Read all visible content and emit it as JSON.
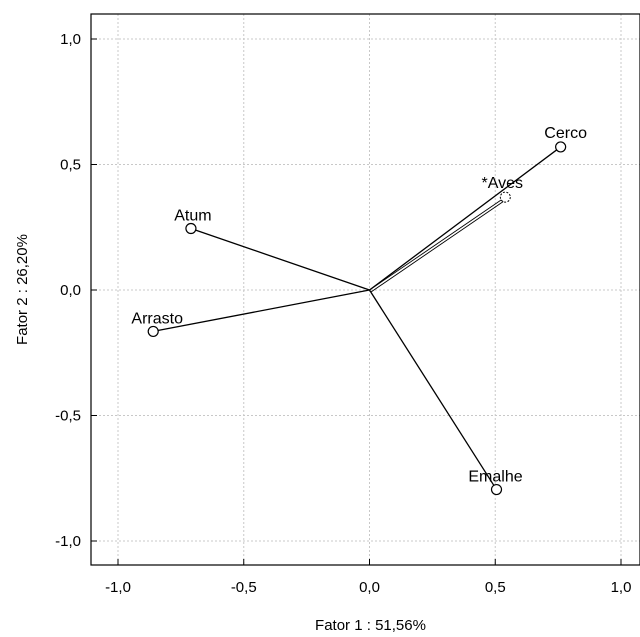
{
  "chart_data": {
    "type": "scatter",
    "title": "",
    "xlabel": "Fator 1 : 51,56%",
    "ylabel": "Fator 2 : 26,20%",
    "xlim": [
      -1.1,
      1.1
    ],
    "ylim": [
      -1.1,
      1.1
    ],
    "xticks": [
      -1.0,
      -0.5,
      0.0,
      0.5,
      1.0
    ],
    "yticks": [
      -1.0,
      -0.5,
      0.0,
      0.5,
      1.0
    ],
    "xtick_labels": [
      "-1,0",
      "-0,5",
      "0,0",
      "0,5",
      "1,0"
    ],
    "ytick_labels": [
      "-1,0",
      "-0,5",
      "0,0",
      "0,5",
      "1,0"
    ],
    "grid": true,
    "points": [
      {
        "label": "Cerco",
        "x": 0.76,
        "y": 0.57,
        "supplementary": false
      },
      {
        "label": "*Aves",
        "x": 0.54,
        "y": 0.37,
        "supplementary": true
      },
      {
        "label": "Atum",
        "x": -0.71,
        "y": 0.245,
        "supplementary": false
      },
      {
        "label": "Arrasto",
        "x": -0.86,
        "y": -0.165,
        "supplementary": false
      },
      {
        "label": "Emalhe",
        "x": 0.505,
        "y": -0.795,
        "supplementary": false
      }
    ]
  }
}
